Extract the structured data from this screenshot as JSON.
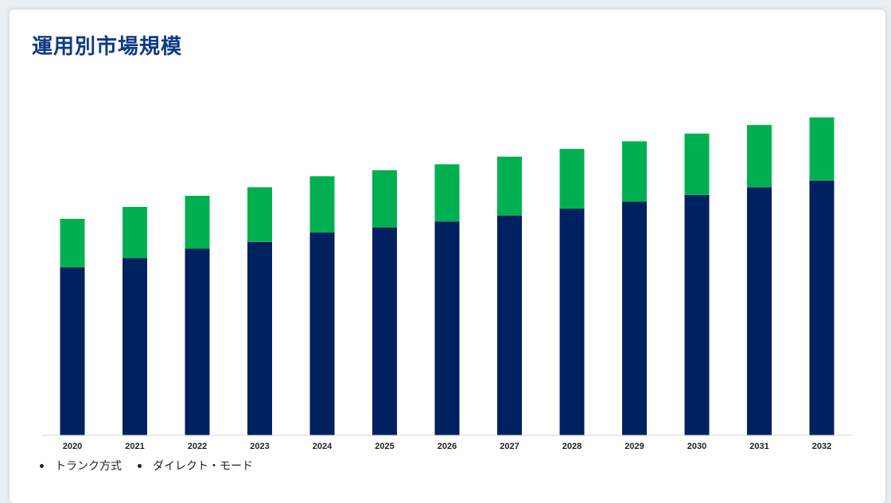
{
  "header": {
    "title": "運用別市場規模"
  },
  "colors": {
    "trunk": "#00215f",
    "direct": "#00b050",
    "title": "#0d3a85"
  },
  "chart_data": {
    "type": "bar",
    "stacked": true,
    "title": "運用別市場規模",
    "xlabel": "",
    "ylabel": "",
    "categories": [
      "2020",
      "2021",
      "2022",
      "2023",
      "2024",
      "2025",
      "2026",
      "2027",
      "2028",
      "2029",
      "2030",
      "2031",
      "2032"
    ],
    "series": [
      {
        "name": "トランク方式",
        "color": "#00215f",
        "values": [
          197,
          208,
          219,
          227,
          238,
          244,
          251,
          258,
          266,
          274,
          282,
          291,
          299
        ]
      },
      {
        "name": "ダイレクト・モード",
        "color": "#00b050",
        "values": [
          57,
          60,
          62,
          64,
          66,
          67,
          67,
          69,
          70,
          71,
          72,
          73,
          74
        ]
      }
    ],
    "ylim": [
      0,
      380
    ],
    "grid": false,
    "legend_position": "bottom-left"
  }
}
